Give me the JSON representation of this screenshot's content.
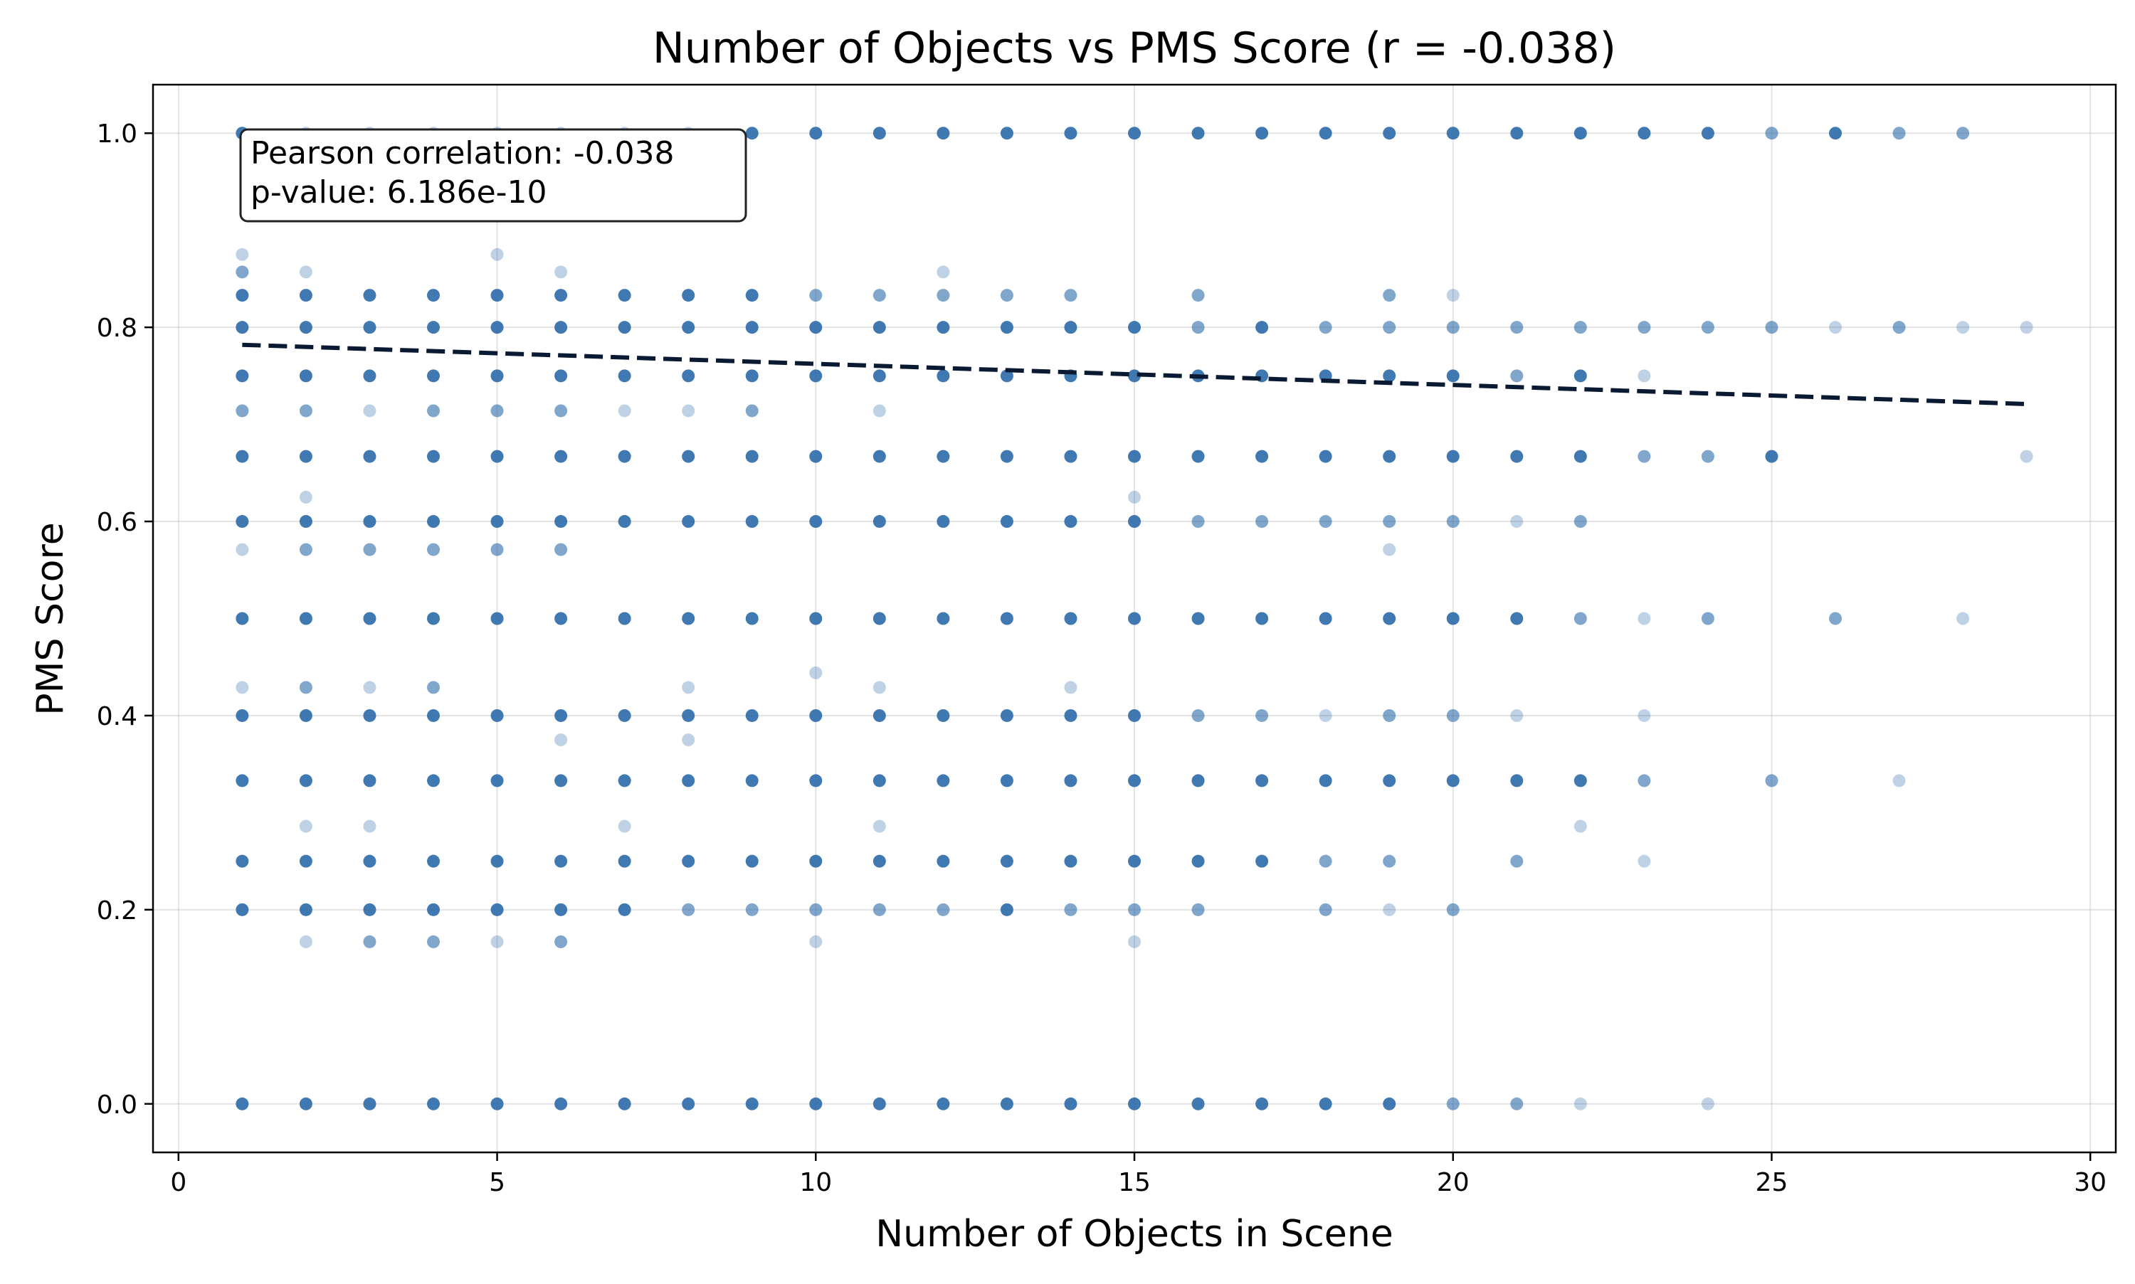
{
  "chart_data": {
    "type": "scatter",
    "title": "Number of Objects vs PMS Score (r = -0.038)",
    "xlabel": "Number of Objects in Scene",
    "ylabel": "PMS Score",
    "xlim": [
      -0.4,
      30.4
    ],
    "ylim": [
      -0.05,
      1.05
    ],
    "x_ticks": [
      0,
      5,
      10,
      15,
      20,
      25,
      30
    ],
    "x_tick_labels": [
      "0",
      "5",
      "10",
      "15",
      "20",
      "25",
      "30"
    ],
    "y_ticks": [
      0.0,
      0.2,
      0.4,
      0.6,
      0.8,
      1.0
    ],
    "y_tick_labels": [
      "0.0",
      "0.2",
      "0.4",
      "0.6",
      "0.8",
      "1.0"
    ],
    "grid": true,
    "annotation": {
      "correlation_text": "Pearson correlation: -0.038",
      "pvalue_text": "p-value: 6.186e-10"
    },
    "trend_line": {
      "x": [
        1,
        29
      ],
      "y": [
        0.782,
        0.721
      ]
    },
    "point_opacity_levels": [
      0.3,
      0.6,
      0.9
    ],
    "points": [
      [
        1,
        1.0,
        3
      ],
      [
        1,
        0.875,
        1
      ],
      [
        1,
        0.857,
        2
      ],
      [
        1,
        0.833,
        3
      ],
      [
        1,
        0.8,
        3
      ],
      [
        1,
        0.75,
        3
      ],
      [
        1,
        0.714,
        2
      ],
      [
        1,
        0.667,
        3
      ],
      [
        1,
        0.6,
        3
      ],
      [
        1,
        0.571,
        1
      ],
      [
        1,
        0.5,
        3
      ],
      [
        1,
        0.429,
        1
      ],
      [
        1,
        0.4,
        3
      ],
      [
        1,
        0.333,
        3
      ],
      [
        1,
        0.25,
        3
      ],
      [
        1,
        0.2,
        3
      ],
      [
        1,
        0.0,
        3
      ],
      [
        2,
        1.0,
        1
      ],
      [
        2,
        0.857,
        1
      ],
      [
        2,
        0.833,
        3
      ],
      [
        2,
        0.8,
        3
      ],
      [
        2,
        0.75,
        3
      ],
      [
        2,
        0.714,
        2
      ],
      [
        2,
        0.667,
        3
      ],
      [
        2,
        0.625,
        1
      ],
      [
        2,
        0.6,
        3
      ],
      [
        2,
        0.571,
        2
      ],
      [
        2,
        0.5,
        3
      ],
      [
        2,
        0.429,
        2
      ],
      [
        2,
        0.4,
        3
      ],
      [
        2,
        0.333,
        3
      ],
      [
        2,
        0.286,
        1
      ],
      [
        2,
        0.25,
        3
      ],
      [
        2,
        0.2,
        3
      ],
      [
        2,
        0.167,
        1
      ],
      [
        2,
        0.0,
        3
      ],
      [
        3,
        1.0,
        1
      ],
      [
        3,
        0.833,
        3
      ],
      [
        3,
        0.8,
        3
      ],
      [
        3,
        0.75,
        3
      ],
      [
        3,
        0.714,
        1
      ],
      [
        3,
        0.667,
        3
      ],
      [
        3,
        0.6,
        3
      ],
      [
        3,
        0.571,
        2
      ],
      [
        3,
        0.5,
        3
      ],
      [
        3,
        0.429,
        1
      ],
      [
        3,
        0.4,
        3
      ],
      [
        3,
        0.333,
        3
      ],
      [
        3,
        0.286,
        1
      ],
      [
        3,
        0.25,
        3
      ],
      [
        3,
        0.2,
        3
      ],
      [
        3,
        0.167,
        2
      ],
      [
        3,
        0.0,
        3
      ],
      [
        4,
        1.0,
        1
      ],
      [
        4,
        0.833,
        3
      ],
      [
        4,
        0.8,
        3
      ],
      [
        4,
        0.75,
        3
      ],
      [
        4,
        0.714,
        2
      ],
      [
        4,
        0.667,
        3
      ],
      [
        4,
        0.6,
        3
      ],
      [
        4,
        0.571,
        2
      ],
      [
        4,
        0.5,
        3
      ],
      [
        4,
        0.429,
        2
      ],
      [
        4,
        0.4,
        3
      ],
      [
        4,
        0.333,
        3
      ],
      [
        4,
        0.25,
        3
      ],
      [
        4,
        0.2,
        3
      ],
      [
        4,
        0.167,
        2
      ],
      [
        4,
        0.0,
        3
      ],
      [
        5,
        1.0,
        1
      ],
      [
        5,
        0.875,
        1
      ],
      [
        5,
        0.833,
        3
      ],
      [
        5,
        0.8,
        3
      ],
      [
        5,
        0.75,
        3
      ],
      [
        5,
        0.714,
        2
      ],
      [
        5,
        0.667,
        3
      ],
      [
        5,
        0.6,
        3
      ],
      [
        5,
        0.571,
        2
      ],
      [
        5,
        0.5,
        3
      ],
      [
        5,
        0.4,
        3
      ],
      [
        5,
        0.333,
        3
      ],
      [
        5,
        0.25,
        3
      ],
      [
        5,
        0.2,
        3
      ],
      [
        5,
        0.167,
        1
      ],
      [
        5,
        0.0,
        3
      ],
      [
        6,
        1.0,
        1
      ],
      [
        6,
        0.857,
        1
      ],
      [
        6,
        0.833,
        3
      ],
      [
        6,
        0.8,
        3
      ],
      [
        6,
        0.75,
        3
      ],
      [
        6,
        0.714,
        2
      ],
      [
        6,
        0.667,
        3
      ],
      [
        6,
        0.6,
        3
      ],
      [
        6,
        0.571,
        2
      ],
      [
        6,
        0.5,
        3
      ],
      [
        6,
        0.4,
        3
      ],
      [
        6,
        0.375,
        1
      ],
      [
        6,
        0.333,
        3
      ],
      [
        6,
        0.25,
        3
      ],
      [
        6,
        0.2,
        3
      ],
      [
        6,
        0.167,
        2
      ],
      [
        6,
        0.0,
        3
      ],
      [
        7,
        1.0,
        1
      ],
      [
        7,
        0.833,
        3
      ],
      [
        7,
        0.8,
        3
      ],
      [
        7,
        0.75,
        3
      ],
      [
        7,
        0.714,
        1
      ],
      [
        7,
        0.667,
        3
      ],
      [
        7,
        0.6,
        3
      ],
      [
        7,
        0.5,
        3
      ],
      [
        7,
        0.4,
        3
      ],
      [
        7,
        0.333,
        3
      ],
      [
        7,
        0.286,
        1
      ],
      [
        7,
        0.25,
        3
      ],
      [
        7,
        0.2,
        3
      ],
      [
        7,
        0.0,
        3
      ],
      [
        8,
        1.0,
        1
      ],
      [
        8,
        0.833,
        3
      ],
      [
        8,
        0.8,
        3
      ],
      [
        8,
        0.75,
        3
      ],
      [
        8,
        0.714,
        1
      ],
      [
        8,
        0.667,
        3
      ],
      [
        8,
        0.6,
        3
      ],
      [
        8,
        0.5,
        3
      ],
      [
        8,
        0.429,
        1
      ],
      [
        8,
        0.4,
        3
      ],
      [
        8,
        0.375,
        1
      ],
      [
        8,
        0.333,
        3
      ],
      [
        8,
        0.25,
        3
      ],
      [
        8,
        0.2,
        2
      ],
      [
        8,
        0.0,
        3
      ],
      [
        9,
        1.0,
        3
      ],
      [
        9,
        0.833,
        3
      ],
      [
        9,
        0.8,
        3
      ],
      [
        9,
        0.75,
        3
      ],
      [
        9,
        0.714,
        2
      ],
      [
        9,
        0.667,
        3
      ],
      [
        9,
        0.6,
        3
      ],
      [
        9,
        0.5,
        3
      ],
      [
        9,
        0.4,
        3
      ],
      [
        9,
        0.333,
        3
      ],
      [
        9,
        0.25,
        3
      ],
      [
        9,
        0.2,
        2
      ],
      [
        9,
        0.0,
        3
      ],
      [
        10,
        1.0,
        3
      ],
      [
        10,
        0.833,
        2
      ],
      [
        10,
        0.8,
        3
      ],
      [
        10,
        0.75,
        3
      ],
      [
        10,
        0.667,
        3
      ],
      [
        10,
        0.6,
        3
      ],
      [
        10,
        0.5,
        3
      ],
      [
        10,
        0.444,
        1
      ],
      [
        10,
        0.4,
        3
      ],
      [
        10,
        0.333,
        3
      ],
      [
        10,
        0.25,
        3
      ],
      [
        10,
        0.2,
        2
      ],
      [
        10,
        0.167,
        1
      ],
      [
        10,
        0.0,
        3
      ],
      [
        11,
        1.0,
        3
      ],
      [
        11,
        0.833,
        2
      ],
      [
        11,
        0.8,
        3
      ],
      [
        11,
        0.75,
        3
      ],
      [
        11,
        0.714,
        1
      ],
      [
        11,
        0.667,
        3
      ],
      [
        11,
        0.6,
        3
      ],
      [
        11,
        0.5,
        3
      ],
      [
        11,
        0.429,
        1
      ],
      [
        11,
        0.4,
        3
      ],
      [
        11,
        0.333,
        3
      ],
      [
        11,
        0.286,
        1
      ],
      [
        11,
        0.25,
        3
      ],
      [
        11,
        0.2,
        2
      ],
      [
        11,
        0.0,
        3
      ],
      [
        12,
        1.0,
        3
      ],
      [
        12,
        0.857,
        1
      ],
      [
        12,
        0.833,
        2
      ],
      [
        12,
        0.8,
        3
      ],
      [
        12,
        0.75,
        3
      ],
      [
        12,
        0.667,
        3
      ],
      [
        12,
        0.6,
        3
      ],
      [
        12,
        0.5,
        3
      ],
      [
        12,
        0.4,
        3
      ],
      [
        12,
        0.333,
        3
      ],
      [
        12,
        0.25,
        3
      ],
      [
        12,
        0.2,
        2
      ],
      [
        12,
        0.0,
        3
      ],
      [
        13,
        1.0,
        3
      ],
      [
        13,
        0.833,
        2
      ],
      [
        13,
        0.8,
        3
      ],
      [
        13,
        0.75,
        3
      ],
      [
        13,
        0.667,
        3
      ],
      [
        13,
        0.6,
        3
      ],
      [
        13,
        0.5,
        3
      ],
      [
        13,
        0.4,
        3
      ],
      [
        13,
        0.333,
        3
      ],
      [
        13,
        0.25,
        3
      ],
      [
        13,
        0.2,
        3
      ],
      [
        13,
        0.0,
        3
      ],
      [
        14,
        1.0,
        3
      ],
      [
        14,
        0.833,
        2
      ],
      [
        14,
        0.8,
        3
      ],
      [
        14,
        0.75,
        3
      ],
      [
        14,
        0.667,
        3
      ],
      [
        14,
        0.6,
        3
      ],
      [
        14,
        0.5,
        3
      ],
      [
        14,
        0.429,
        1
      ],
      [
        14,
        0.4,
        3
      ],
      [
        14,
        0.333,
        3
      ],
      [
        14,
        0.25,
        3
      ],
      [
        14,
        0.2,
        2
      ],
      [
        14,
        0.0,
        3
      ],
      [
        15,
        1.0,
        3
      ],
      [
        15,
        0.8,
        3
      ],
      [
        15,
        0.75,
        3
      ],
      [
        15,
        0.667,
        3
      ],
      [
        15,
        0.625,
        1
      ],
      [
        15,
        0.6,
        3
      ],
      [
        15,
        0.5,
        3
      ],
      [
        15,
        0.4,
        3
      ],
      [
        15,
        0.333,
        3
      ],
      [
        15,
        0.25,
        3
      ],
      [
        15,
        0.2,
        2
      ],
      [
        15,
        0.167,
        1
      ],
      [
        15,
        0.0,
        3
      ],
      [
        16,
        1.0,
        3
      ],
      [
        16,
        0.833,
        2
      ],
      [
        16,
        0.8,
        2
      ],
      [
        16,
        0.75,
        3
      ],
      [
        16,
        0.667,
        3
      ],
      [
        16,
        0.6,
        2
      ],
      [
        16,
        0.5,
        3
      ],
      [
        16,
        0.4,
        2
      ],
      [
        16,
        0.333,
        3
      ],
      [
        16,
        0.25,
        3
      ],
      [
        16,
        0.2,
        2
      ],
      [
        16,
        0.0,
        3
      ],
      [
        17,
        1.0,
        3
      ],
      [
        17,
        0.8,
        3
      ],
      [
        17,
        0.75,
        3
      ],
      [
        17,
        0.667,
        3
      ],
      [
        17,
        0.6,
        2
      ],
      [
        17,
        0.5,
        3
      ],
      [
        17,
        0.4,
        2
      ],
      [
        17,
        0.333,
        3
      ],
      [
        17,
        0.25,
        3
      ],
      [
        17,
        0.0,
        3
      ],
      [
        18,
        1.0,
        3
      ],
      [
        18,
        0.8,
        2
      ],
      [
        18,
        0.75,
        3
      ],
      [
        18,
        0.667,
        3
      ],
      [
        18,
        0.6,
        2
      ],
      [
        18,
        0.5,
        3
      ],
      [
        18,
        0.4,
        1
      ],
      [
        18,
        0.333,
        3
      ],
      [
        18,
        0.25,
        2
      ],
      [
        18,
        0.2,
        2
      ],
      [
        18,
        0.0,
        3
      ],
      [
        19,
        1.0,
        3
      ],
      [
        19,
        0.833,
        2
      ],
      [
        19,
        0.8,
        2
      ],
      [
        19,
        0.75,
        3
      ],
      [
        19,
        0.667,
        3
      ],
      [
        19,
        0.6,
        2
      ],
      [
        19,
        0.571,
        1
      ],
      [
        19,
        0.5,
        3
      ],
      [
        19,
        0.4,
        2
      ],
      [
        19,
        0.333,
        3
      ],
      [
        19,
        0.25,
        2
      ],
      [
        19,
        0.2,
        1
      ],
      [
        19,
        0.0,
        3
      ],
      [
        20,
        1.0,
        3
      ],
      [
        20,
        0.833,
        1
      ],
      [
        20,
        0.8,
        2
      ],
      [
        20,
        0.75,
        3
      ],
      [
        20,
        0.667,
        3
      ],
      [
        20,
        0.6,
        2
      ],
      [
        20,
        0.5,
        3
      ],
      [
        20,
        0.4,
        2
      ],
      [
        20,
        0.333,
        3
      ],
      [
        20,
        0.2,
        2
      ],
      [
        20,
        0.0,
        2
      ],
      [
        21,
        1.0,
        3
      ],
      [
        21,
        0.8,
        2
      ],
      [
        21,
        0.75,
        2
      ],
      [
        21,
        0.667,
        3
      ],
      [
        21,
        0.6,
        1
      ],
      [
        21,
        0.5,
        3
      ],
      [
        21,
        0.4,
        1
      ],
      [
        21,
        0.333,
        3
      ],
      [
        21,
        0.25,
        2
      ],
      [
        21,
        0.0,
        2
      ],
      [
        22,
        1.0,
        3
      ],
      [
        22,
        0.8,
        2
      ],
      [
        22,
        0.75,
        3
      ],
      [
        22,
        0.667,
        3
      ],
      [
        22,
        0.6,
        2
      ],
      [
        22,
        0.5,
        2
      ],
      [
        22,
        0.333,
        3
      ],
      [
        22,
        0.286,
        1
      ],
      [
        22,
        0.0,
        1
      ],
      [
        23,
        1.0,
        3
      ],
      [
        23,
        0.8,
        2
      ],
      [
        23,
        0.75,
        1
      ],
      [
        23,
        0.667,
        2
      ],
      [
        23,
        0.5,
        1
      ],
      [
        23,
        0.4,
        1
      ],
      [
        23,
        0.333,
        2
      ],
      [
        23,
        0.25,
        1
      ],
      [
        24,
        1.0,
        3
      ],
      [
        24,
        0.8,
        2
      ],
      [
        24,
        0.667,
        2
      ],
      [
        24,
        0.5,
        2
      ],
      [
        24,
        0.0,
        1
      ],
      [
        25,
        1.0,
        2
      ],
      [
        25,
        0.8,
        2
      ],
      [
        25,
        0.667,
        3
      ],
      [
        25,
        0.333,
        2
      ],
      [
        26,
        1.0,
        3
      ],
      [
        26,
        0.8,
        1
      ],
      [
        26,
        0.5,
        2
      ],
      [
        27,
        1.0,
        2
      ],
      [
        27,
        0.8,
        2
      ],
      [
        27,
        0.333,
        1
      ],
      [
        28,
        1.0,
        2
      ],
      [
        28,
        0.8,
        1
      ],
      [
        28,
        0.5,
        1
      ],
      [
        29,
        0.8,
        1
      ],
      [
        29,
        0.667,
        1
      ]
    ]
  },
  "colors": {
    "point": "#2b6aa9",
    "trend": "#0b1a33",
    "grid": "#b0b0b0",
    "axis": "#000000",
    "background": "#ffffff"
  }
}
